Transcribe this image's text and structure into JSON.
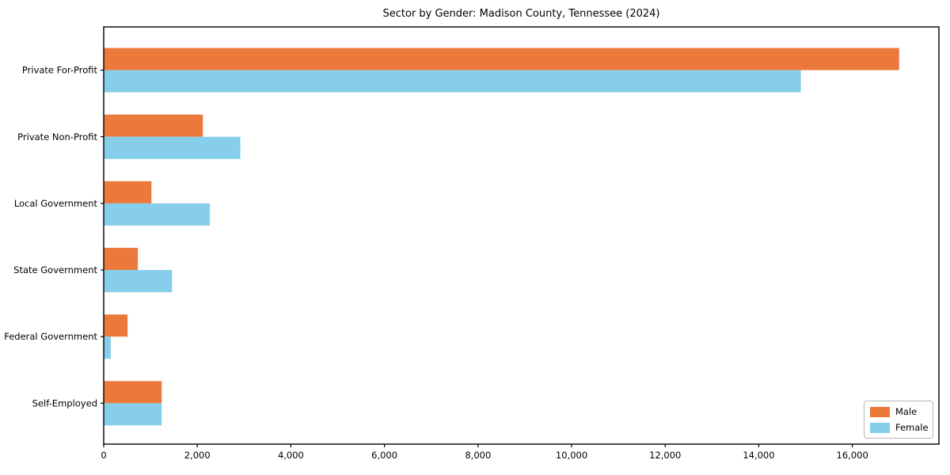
{
  "chart_data": {
    "type": "bar",
    "orientation": "horizontal",
    "title": "Sector by Gender: Madison County, Tennessee (2024)",
    "categories": [
      "Private For-Profit",
      "Private Non-Profit",
      "Local Government",
      "State Government",
      "Federal Government",
      "Self-Employed"
    ],
    "series": [
      {
        "name": "Male",
        "color": "#ec793c",
        "values": [
          17000,
          2120,
          1020,
          730,
          510,
          1240
        ]
      },
      {
        "name": "Female",
        "color": "#87ceeb",
        "values": [
          14900,
          2920,
          2270,
          1460,
          150,
          1240
        ]
      }
    ],
    "xlabel": "",
    "ylabel": "",
    "xlim": [
      0,
      17850
    ],
    "x_ticks": [
      0,
      2000,
      4000,
      6000,
      8000,
      10000,
      12000,
      14000,
      16000
    ],
    "x_tick_labels": [
      "0",
      "2,000",
      "4,000",
      "6,000",
      "8,000",
      "10,000",
      "12,000",
      "14,000",
      "16,000"
    ],
    "grid": false,
    "legend_position": "lower right",
    "background_color": "#ffffff",
    "axis_color": "#000000"
  }
}
